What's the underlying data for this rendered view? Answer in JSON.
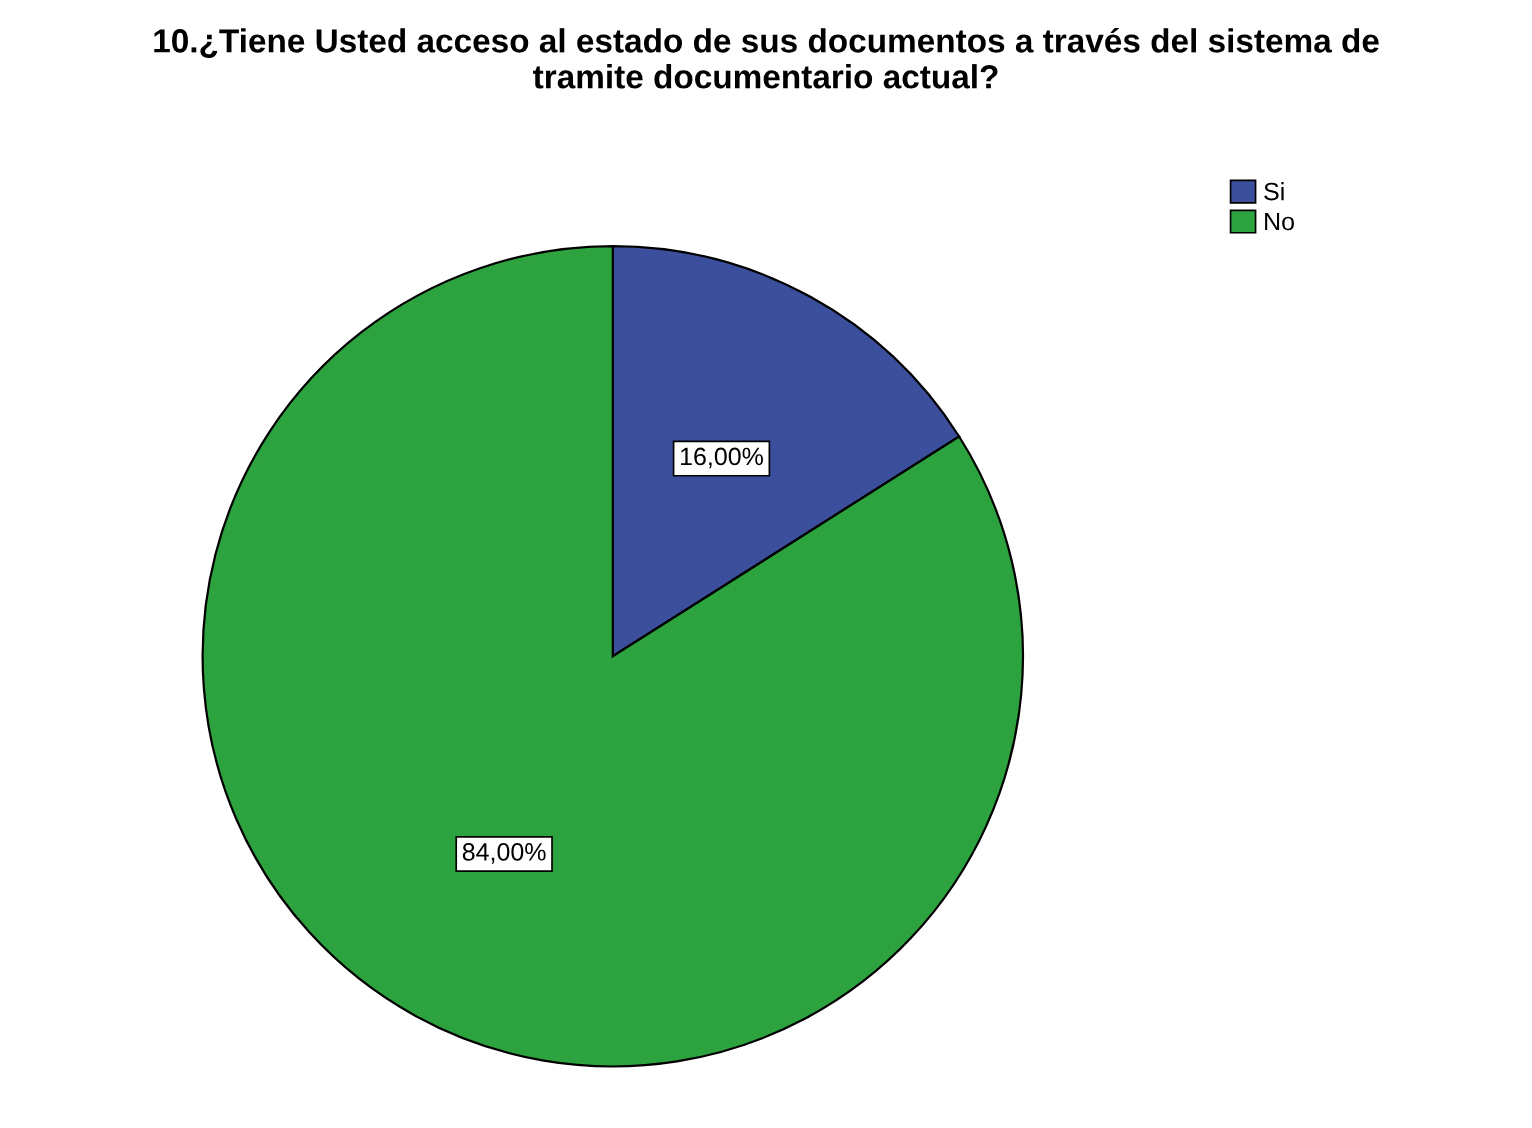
{
  "chart_data": {
    "type": "pie",
    "title": "10.¿Tiene Usted acceso al estado de sus documentos a través del sistema de\ntramite documentario actual?",
    "categories": [
      "Si",
      "No"
    ],
    "values": [
      16,
      84
    ],
    "colors": [
      "#3c4f9c",
      "#2ca33f"
    ],
    "value_labels": [
      "16,00%",
      "84,00%"
    ],
    "legend": "top right"
  }
}
